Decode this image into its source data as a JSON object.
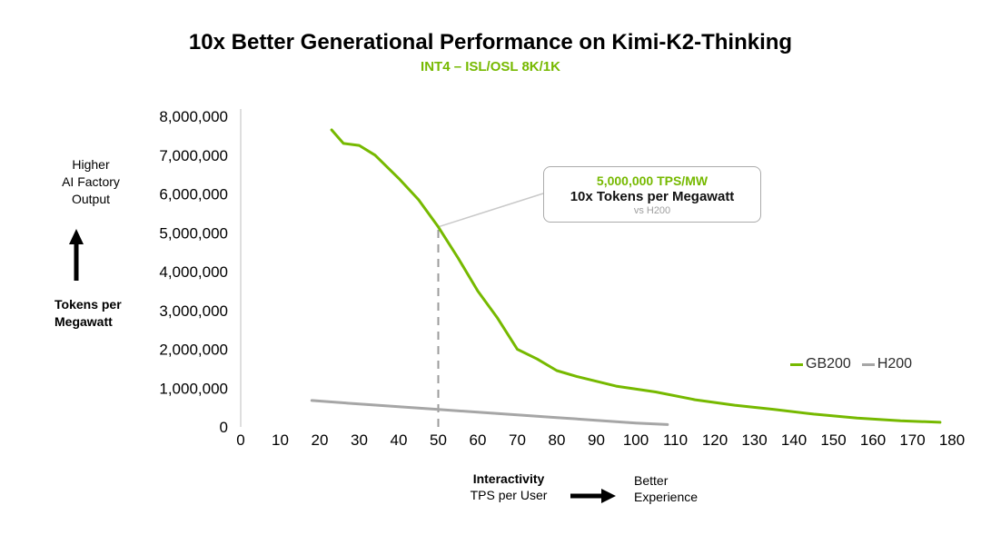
{
  "colors": {
    "accent": "#76b900",
    "h200_gray": "#a6a6a6"
  },
  "left_axis": {
    "direction_label": "Higher\nAI Factory\nOutput",
    "axis_label": "Tokens per\nMegawatt"
  },
  "callout": {
    "value": "5,000,000 TPS/MW",
    "caption": "10x Tokens per Megawatt",
    "comparison": "vs H200"
  },
  "x_axis": {
    "label_bold": "Interactivity",
    "label_sub": "TPS per User",
    "direction_label": "Better\nExperience"
  },
  "chart_data": {
    "type": "line",
    "title": "10x Better Generational Performance on Kimi-K2-Thinking",
    "subtitle": "INT4 – ISL/OSL 8K/1K",
    "xlabel": "Interactivity (TPS per User)",
    "ylabel": "Tokens per Megawatt",
    "xlim": [
      0,
      180
    ],
    "ylim": [
      0,
      8000000
    ],
    "grid": false,
    "legend_position": "right",
    "x_ticks": [
      0,
      10,
      20,
      30,
      40,
      50,
      60,
      70,
      80,
      90,
      100,
      110,
      120,
      130,
      140,
      150,
      160,
      170,
      180
    ],
    "y_ticks": [
      0,
      1000000,
      2000000,
      3000000,
      4000000,
      5000000,
      6000000,
      7000000,
      8000000
    ],
    "marker": {
      "x": 50,
      "y": 5150000,
      "label": "5,000,000 TPS/MW"
    },
    "series": [
      {
        "name": "GB200",
        "color": "#76b900",
        "points": [
          [
            23,
            7650000
          ],
          [
            26,
            7300000
          ],
          [
            30,
            7250000
          ],
          [
            34,
            7000000
          ],
          [
            40,
            6400000
          ],
          [
            45,
            5850000
          ],
          [
            50,
            5150000
          ],
          [
            55,
            4350000
          ],
          [
            60,
            3500000
          ],
          [
            65,
            2800000
          ],
          [
            70,
            2000000
          ],
          [
            75,
            1750000
          ],
          [
            80,
            1450000
          ],
          [
            85,
            1300000
          ],
          [
            95,
            1050000
          ],
          [
            105,
            900000
          ],
          [
            115,
            700000
          ],
          [
            125,
            560000
          ],
          [
            135,
            450000
          ],
          [
            145,
            330000
          ],
          [
            156,
            230000
          ],
          [
            167,
            160000
          ],
          [
            177,
            120000
          ]
        ]
      },
      {
        "name": "H200",
        "color": "#a6a6a6",
        "points": [
          [
            18,
            680000
          ],
          [
            30,
            590000
          ],
          [
            40,
            520000
          ],
          [
            50,
            450000
          ],
          [
            60,
            380000
          ],
          [
            70,
            310000
          ],
          [
            80,
            240000
          ],
          [
            90,
            170000
          ],
          [
            100,
            100000
          ],
          [
            108,
            60000
          ]
        ]
      }
    ]
  }
}
